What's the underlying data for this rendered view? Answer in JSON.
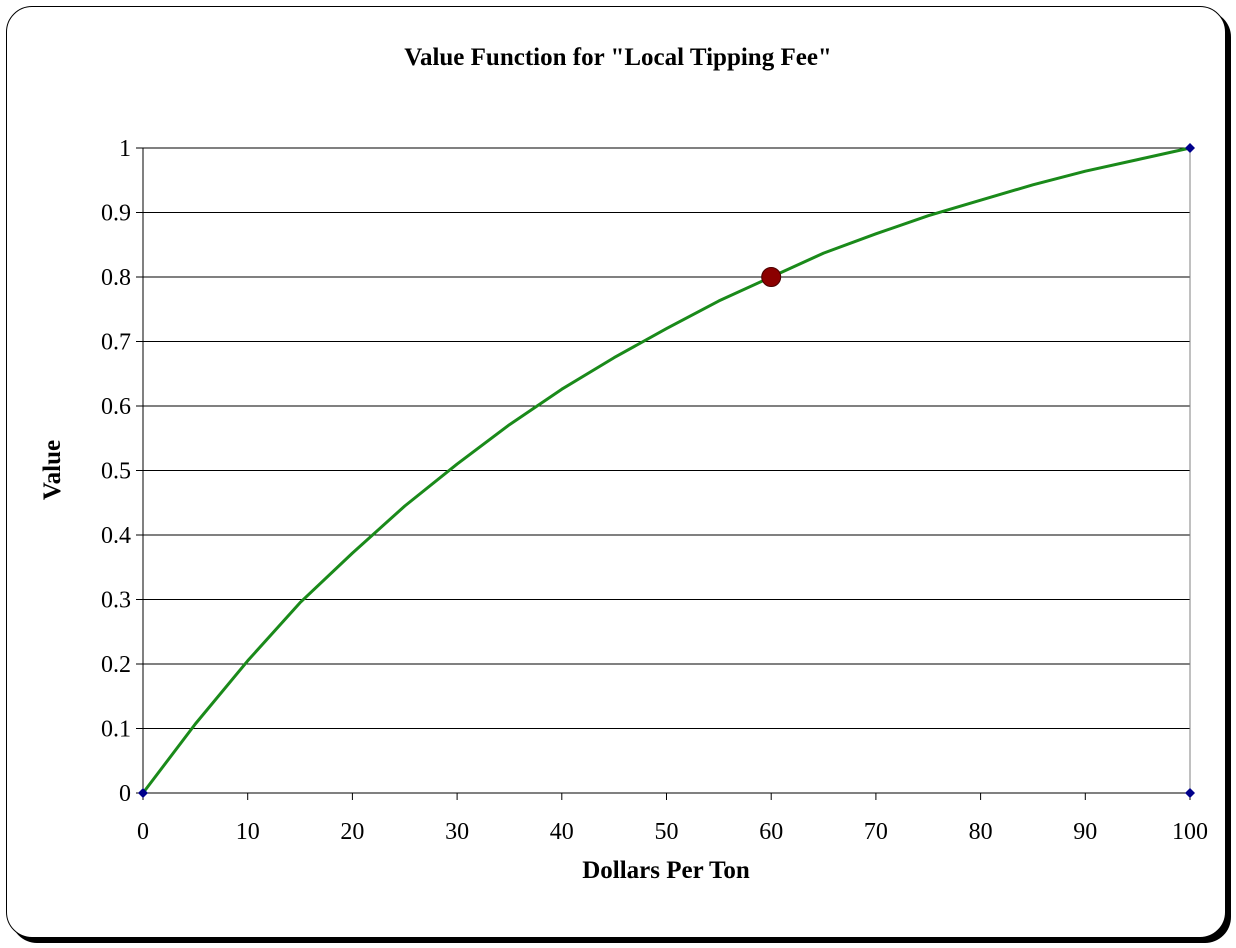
{
  "chart_data": {
    "type": "line",
    "title": "Value Function for \"Local Tipping Fee\"",
    "xlabel": "Dollars Per Ton",
    "ylabel": "Value",
    "xlim": [
      0,
      100
    ],
    "ylim": [
      0,
      1
    ],
    "x_ticks": [
      "0",
      "10",
      "20",
      "30",
      "40",
      "50",
      "60",
      "70",
      "80",
      "90",
      "100"
    ],
    "y_ticks": [
      "0",
      "0.1",
      "0.2",
      "0.3",
      "0.4",
      "0.5",
      "0.6",
      "0.7",
      "0.8",
      "0.9",
      "1"
    ],
    "grid": "horizontal",
    "legend": "none",
    "series": [
      {
        "color": "#1a8a1a",
        "x": [
          0,
          5,
          10,
          15,
          20,
          25,
          30,
          35,
          40,
          45,
          50,
          55,
          60,
          65,
          70,
          75,
          80,
          85,
          90,
          95,
          100
        ],
        "y": [
          0,
          0.107,
          0.205,
          0.295,
          0.372,
          0.445,
          0.51,
          0.571,
          0.626,
          0.675,
          0.72,
          0.763,
          0.8,
          0.837,
          0.867,
          0.895,
          0.919,
          0.943,
          0.964,
          0.982,
          1.0
        ]
      },
      {
        "color": "#00008b",
        "marker": "diamond",
        "x": [
          0,
          100,
          100
        ],
        "y": [
          0,
          1,
          0
        ]
      }
    ],
    "highlight_point": {
      "x": 60,
      "y": 0.8,
      "color": "#8b0000"
    }
  }
}
